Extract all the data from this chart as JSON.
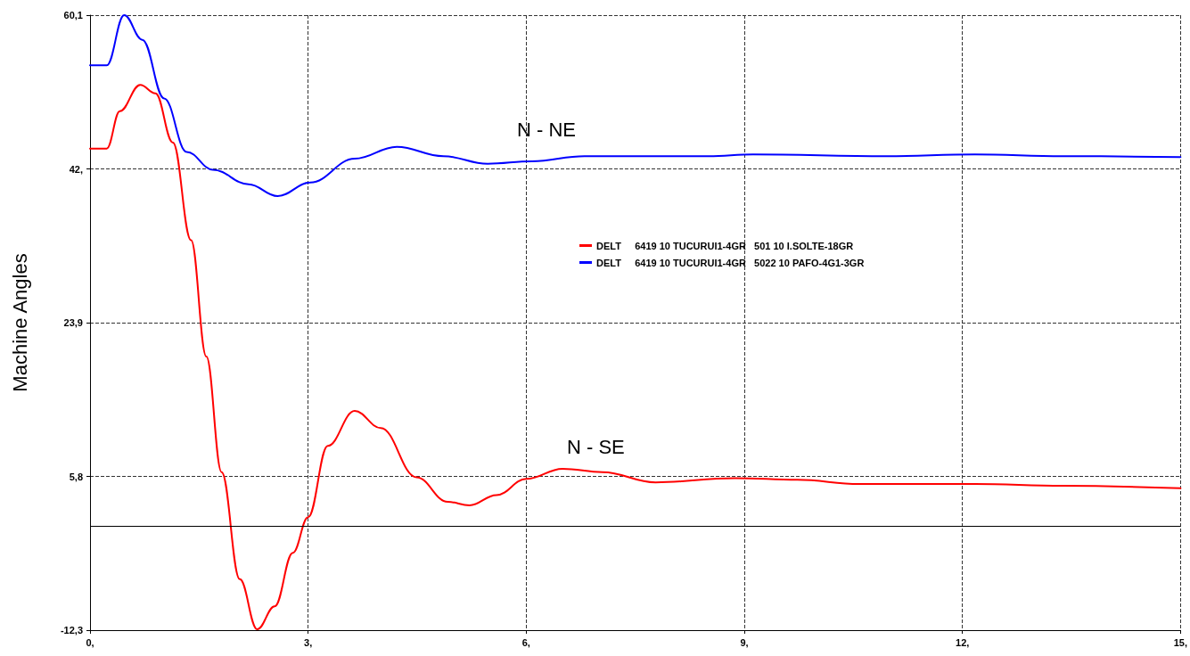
{
  "chart_data": {
    "type": "line",
    "ylabel": "Machine Angles",
    "xlim": [
      0,
      15
    ],
    "xticks": [
      {
        "value": 0,
        "label": "0,"
      },
      {
        "value": 3,
        "label": "3,"
      },
      {
        "value": 6,
        "label": "6,"
      },
      {
        "value": 9,
        "label": "9,"
      },
      {
        "value": 12,
        "label": "12,"
      },
      {
        "value": 15,
        "label": "15,"
      }
    ],
    "ylim": [
      -12.3,
      60.1
    ],
    "yticks": [
      {
        "value": -12.3,
        "label": "-12,3"
      },
      {
        "value": 5.8,
        "label": "5,8"
      },
      {
        "value": 23.9,
        "label": "23,9"
      },
      {
        "value": 42,
        "label": "42,"
      },
      {
        "value": 60.1,
        "label": "60,1"
      }
    ],
    "grid": true,
    "legend": "center",
    "marker": "none",
    "line_style": "solid",
    "ref_lines": [
      {
        "axis": "y",
        "value": 0,
        "color": "#000000",
        "line_style": "solid"
      }
    ],
    "annotations": [
      "N - NE",
      "N - SE"
    ],
    "series": [
      {
        "name": "DELT     6419 10 TUCURUI1-4GR   501 10 I.SOLTE-18GR",
        "color": "#ff0000",
        "x": [
          0,
          0.23,
          0.41,
          0.69,
          0.9,
          1.14,
          1.39,
          1.6,
          1.81,
          2.06,
          2.3,
          2.54,
          2.79,
          3.0,
          3.27,
          3.64,
          4.0,
          4.49,
          4.92,
          5.22,
          5.59,
          6.0,
          6.5,
          7.05,
          7.78,
          8.87,
          9.73,
          10.58,
          12.17,
          13.38,
          15
        ],
        "values": [
          44.4,
          44.4,
          48.8,
          51.9,
          50.9,
          45.1,
          33.6,
          19.9,
          6.3,
          -6.3,
          -12.2,
          -9.5,
          -3.2,
          1.0,
          9.4,
          13.5,
          11.5,
          5.7,
          2.8,
          2.4,
          3.6,
          5.5,
          6.7,
          6.3,
          5.1,
          5.6,
          5.4,
          4.9,
          4.9,
          4.7,
          4.4
        ]
      },
      {
        "name": "DELT     6419 10 TUCURUI1-4GR   5022 10 PAFO-4G1-3GR",
        "color": "#0000ff",
        "x": [
          0,
          0.23,
          0.47,
          0.72,
          1.02,
          1.33,
          1.69,
          2.18,
          2.58,
          3.03,
          3.64,
          4.22,
          4.86,
          5.47,
          6.08,
          6.8,
          8.51,
          9.12,
          10.95,
          12.17,
          13.38,
          15
        ],
        "values": [
          54.2,
          54.2,
          60.1,
          57.2,
          50.3,
          44.0,
          41.9,
          40.2,
          38.8,
          40.4,
          43.2,
          44.6,
          43.5,
          42.6,
          42.9,
          43.5,
          43.5,
          43.7,
          43.5,
          43.7,
          43.5,
          43.4
        ]
      }
    ]
  }
}
